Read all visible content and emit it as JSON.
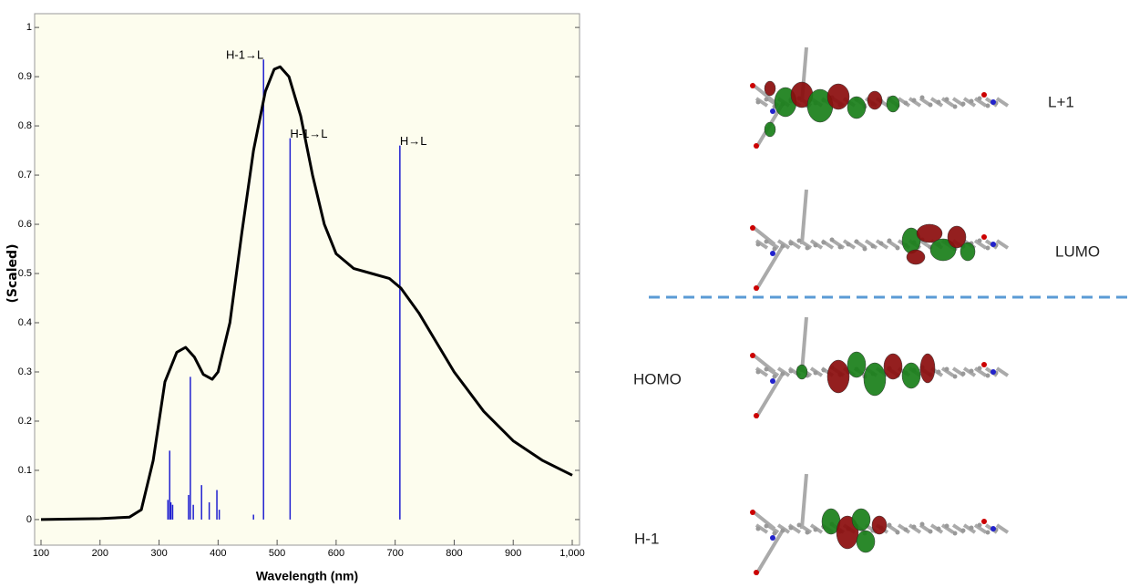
{
  "chart_data": {
    "type": "spectrum",
    "xlabel": "Wavelength (nm)",
    "ylabel": "(Scaled)",
    "xlim": [
      100,
      1000
    ],
    "ylim": [
      -0.052,
      1.028
    ],
    "xticks": [
      100,
      200,
      300,
      400,
      500,
      600,
      700,
      800,
      900,
      {
        "value": 1000,
        "label": "1,000"
      }
    ],
    "yticks": [
      0,
      0.1,
      0.2,
      0.3,
      0.4,
      0.5,
      0.6,
      0.7,
      0.8,
      0.9,
      1
    ],
    "curve": {
      "color": "#000000",
      "x": [
        100,
        200,
        250,
        270,
        290,
        310,
        330,
        345,
        360,
        375,
        390,
        400,
        420,
        440,
        460,
        480,
        495,
        505,
        520,
        540,
        560,
        580,
        600,
        630,
        660,
        690,
        710,
        740,
        770,
        800,
        850,
        900,
        950,
        1000
      ],
      "values": [
        0,
        0.002,
        0.005,
        0.02,
        0.12,
        0.28,
        0.34,
        0.35,
        0.33,
        0.295,
        0.285,
        0.3,
        0.4,
        0.58,
        0.75,
        0.87,
        0.915,
        0.92,
        0.9,
        0.82,
        0.7,
        0.6,
        0.54,
        0.51,
        0.5,
        0.49,
        0.47,
        0.42,
        0.36,
        0.3,
        0.22,
        0.16,
        0.12,
        0.09
      ]
    },
    "sticks": {
      "color": "#1f1fd0",
      "x": [
        477,
        522,
        708,
        353,
        318,
        315,
        320,
        323,
        350,
        358,
        372,
        385,
        398,
        402,
        460
      ],
      "values": [
        0.935,
        0.775,
        0.76,
        0.29,
        0.14,
        0.04,
        0.035,
        0.03,
        0.05,
        0.03,
        0.07,
        0.035,
        0.06,
        0.02,
        0.01
      ],
      "labels": [
        "H-1→L",
        "H-1→L",
        "H→L",
        null,
        null,
        null,
        null,
        null,
        null,
        null,
        null,
        null,
        null,
        null,
        null
      ]
    }
  },
  "orbitals": [
    "L+1",
    "LUMO",
    "HOMO",
    "H-1"
  ]
}
